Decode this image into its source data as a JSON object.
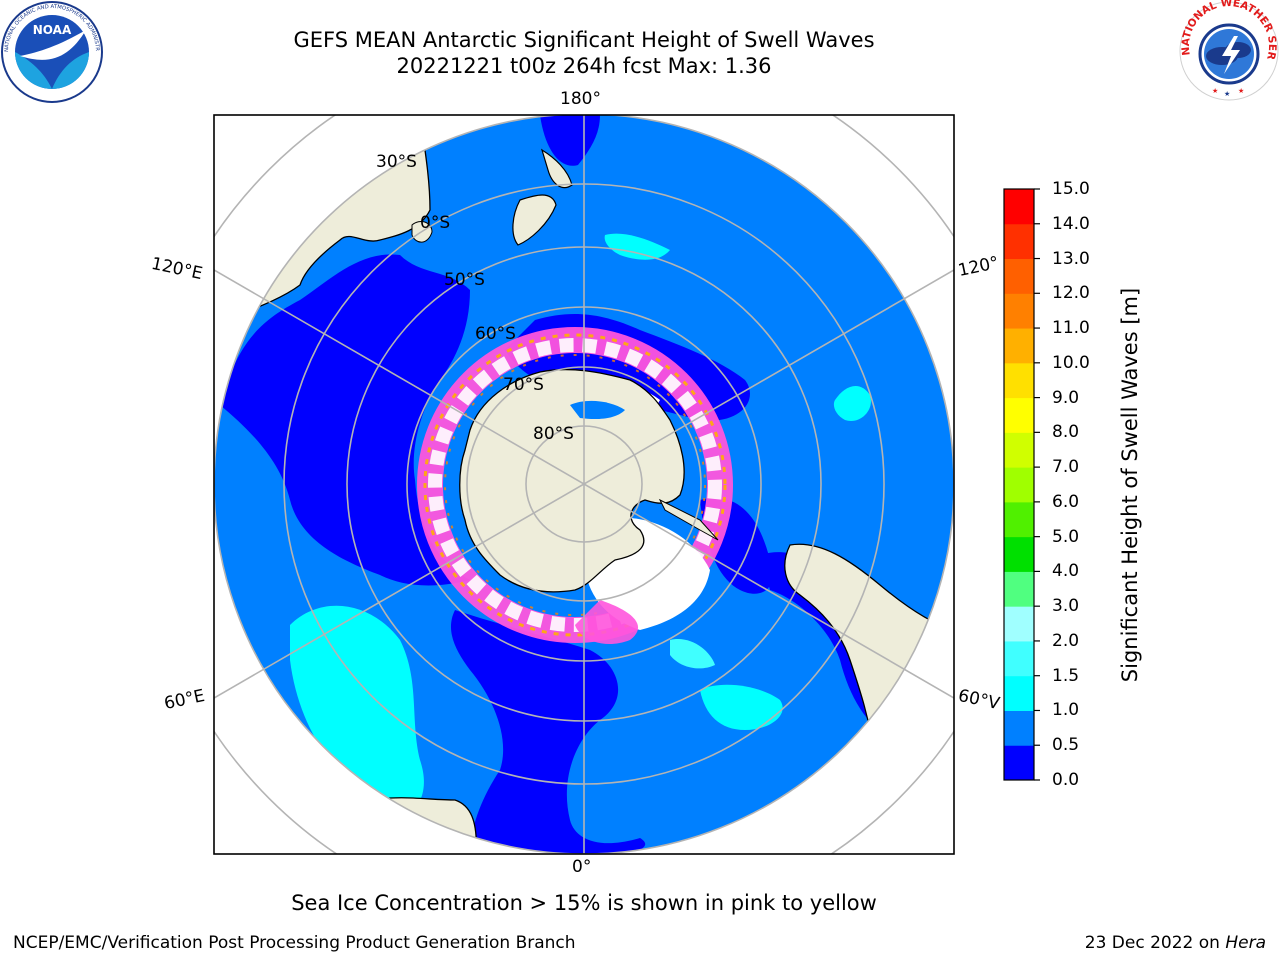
{
  "header": {
    "title_line1": "GEFS MEAN Antarctic Significant Height of Swell Waves",
    "title_line2": "20221221 t00z 264h fcst   Max: 1.36"
  },
  "logos": {
    "left": {
      "icon": "noaa-logo-icon",
      "text": "NATIONAL OCEANIC AND ATMOSPHERIC ADMINISTRATION U.S. DEPARTMENT OF COMMERCE",
      "center_text": "NOAA"
    },
    "right": {
      "icon": "nws-logo-icon",
      "text": "NATIONAL WEATHER SERVICE"
    }
  },
  "map": {
    "projection": "south-polar-stereographic",
    "longitude_labels": {
      "top": "180°",
      "bottom": "0°",
      "upper_left": "120°E",
      "upper_right": "120°",
      "lower_left": "60°E",
      "lower_right": "60°V"
    },
    "latitude_labels": [
      "30°S",
      "0°S",
      "50°S",
      "60°S",
      "70°S",
      "80°S"
    ]
  },
  "colorbar": {
    "label": "Significant Height of Swell Waves [m]",
    "ticks": [
      "15.0",
      "14.0",
      "13.0",
      "12.0",
      "11.0",
      "10.0",
      "9.0",
      "8.0",
      "7.0",
      "6.0",
      "5.0",
      "4.0",
      "3.0",
      "2.0",
      "1.5",
      "1.0",
      "0.5",
      "0.0"
    ],
    "colors": [
      "#0000ff",
      "#0080ff",
      "#00ffff",
      "#40ffff",
      "#a0ffff",
      "#50ff80",
      "#00e000",
      "#50f000",
      "#a0ff00",
      "#d0ff00",
      "#ffff00",
      "#ffe000",
      "#ffb000",
      "#ff8000",
      "#ff6000",
      "#ff3000",
      "#ff0000"
    ]
  },
  "note": "Sea Ice Concentration > 15% is shown in pink to yellow",
  "footer": {
    "left": "NCEP/EMC/Verification Post Processing Product Generation Branch",
    "date": "23 Dec 2022 on ",
    "host": "Hera"
  },
  "colors": {
    "ocean_deep": "#0000ff",
    "ocean_main": "#0080ff",
    "swell_cyan": "#00ffff",
    "land": "#eeedda",
    "ice_pink": "#ff55dd",
    "ice_white": "#ffffff"
  }
}
